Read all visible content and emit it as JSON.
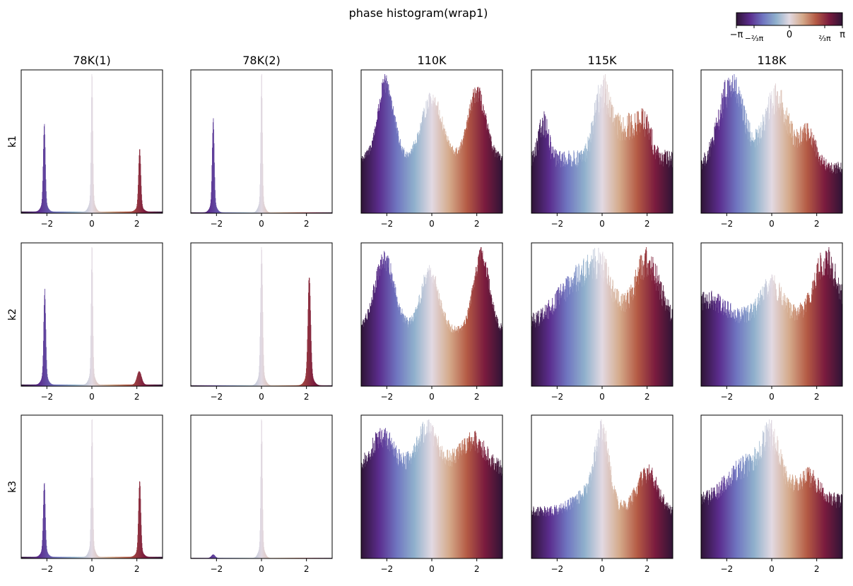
{
  "figure": {
    "title": "phase histogram(wrap1)",
    "colorbar": {
      "colormap": "twilight_shifted",
      "colormap_stops": [
        "#2f1436",
        "#5a2c8c",
        "#6f74c0",
        "#8fb0cc",
        "#e2d9e2",
        "#d4a98a",
        "#b45a44",
        "#7a1b3e",
        "#2f1436"
      ],
      "range": [
        -3.14159,
        3.14159
      ],
      "ticks": [
        {
          "value": -3.14159,
          "label": "−π"
        },
        {
          "value": -2.0944,
          "label": "−⅔π"
        },
        {
          "value": 0,
          "label": "0"
        },
        {
          "value": 2.0944,
          "label": "⅔π"
        },
        {
          "value": 3.14159,
          "label": "π"
        }
      ]
    },
    "column_titles": [
      "78K(1)",
      "78K(2)",
      "110K",
      "115K",
      "118K"
    ],
    "row_labels": [
      "k1",
      "k2",
      "k3"
    ]
  },
  "chart_data": {
    "type": "bar",
    "kind": "grid of phase histograms (3 rows × 5 columns)",
    "x_range": [
      -3.14159,
      3.14159
    ],
    "x_ticks": [
      {
        "value": -2,
        "label": "−2"
      },
      {
        "value": 0,
        "label": "0"
      },
      {
        "value": 2,
        "label": "2"
      }
    ],
    "y_ticks_shown": false,
    "bins": 400,
    "panels": [
      {
        "row": "k1",
        "col": "78K(1)",
        "baseline": 0.012,
        "noise": 0.02,
        "components": [
          {
            "center": -2.12,
            "amp": 0.59,
            "width": 0.045,
            "tail_amp": 0.12,
            "tail_width": 0.13
          },
          {
            "center": 0.0,
            "amp": 0.95,
            "width": 0.035,
            "tail_amp": 0.1,
            "tail_width": 0.12
          },
          {
            "center": 2.12,
            "amp": 0.43,
            "width": 0.05,
            "tail_amp": 0.1,
            "tail_width": 0.14
          }
        ]
      },
      {
        "row": "k1",
        "col": "78K(2)",
        "baseline": 0.006,
        "noise": 0.02,
        "components": [
          {
            "center": -2.15,
            "amp": 0.62,
            "width": 0.045,
            "tail_amp": 0.12,
            "tail_width": 0.13
          },
          {
            "center": 0.0,
            "amp": 0.95,
            "width": 0.035,
            "tail_amp": 0.1,
            "tail_width": 0.12
          }
        ]
      },
      {
        "row": "k1",
        "col": "110K",
        "baseline": 0.35,
        "noise": 0.08,
        "components": [
          {
            "center": -2.05,
            "amp": 0.48,
            "width": 0.35
          },
          {
            "center": 0.0,
            "amp": 0.38,
            "width": 0.45
          },
          {
            "center": 2.0,
            "amp": 0.42,
            "width": 0.38
          }
        ]
      },
      {
        "row": "k1",
        "col": "115K",
        "baseline": 0.38,
        "noise": 0.16,
        "components": [
          {
            "center": -2.6,
            "amp": 0.26,
            "width": 0.2
          },
          {
            "center": 0.0,
            "amp": 0.45,
            "width": 0.35
          },
          {
            "center": 1.1,
            "amp": 0.22,
            "width": 0.55
          },
          {
            "center": 1.9,
            "amp": 0.18,
            "width": 0.3
          }
        ]
      },
      {
        "row": "k1",
        "col": "118K",
        "baseline": 0.28,
        "noise": 0.14,
        "components": [
          {
            "center": -1.8,
            "amp": 0.5,
            "width": 0.55
          },
          {
            "center": 0.2,
            "amp": 0.42,
            "width": 0.55
          },
          {
            "center": 1.6,
            "amp": 0.2,
            "width": 0.35
          }
        ]
      },
      {
        "row": "k2",
        "col": "78K(1)",
        "baseline": 0.012,
        "noise": 0.02,
        "components": [
          {
            "center": -2.1,
            "amp": 0.63,
            "width": 0.045,
            "tail_amp": 0.12,
            "tail_width": 0.13
          },
          {
            "center": 0.0,
            "amp": 0.95,
            "width": 0.035,
            "tail_amp": 0.1,
            "tail_width": 0.12
          },
          {
            "center": 2.1,
            "amp": 0.1,
            "width": 0.1
          }
        ]
      },
      {
        "row": "k2",
        "col": "78K(2)",
        "baseline": 0.006,
        "noise": 0.02,
        "components": [
          {
            "center": 0.0,
            "amp": 0.93,
            "width": 0.045,
            "tail_amp": 0.1,
            "tail_width": 0.14
          },
          {
            "center": 2.12,
            "amp": 0.72,
            "width": 0.06,
            "tail_amp": 0.12,
            "tail_width": 0.16
          }
        ]
      },
      {
        "row": "k2",
        "col": "110K",
        "baseline": 0.38,
        "noise": 0.08,
        "components": [
          {
            "center": -2.1,
            "amp": 0.48,
            "width": 0.45
          },
          {
            "center": -0.1,
            "amp": 0.4,
            "width": 0.4
          },
          {
            "center": 2.2,
            "amp": 0.52,
            "width": 0.35
          }
        ]
      },
      {
        "row": "k2",
        "col": "115K",
        "baseline": 0.42,
        "noise": 0.13,
        "components": [
          {
            "center": -1.0,
            "amp": 0.28,
            "width": 0.9
          },
          {
            "center": 0.0,
            "amp": 0.22,
            "width": 0.5
          },
          {
            "center": 2.0,
            "amp": 0.4,
            "width": 0.55
          }
        ]
      },
      {
        "row": "k2",
        "col": "118K",
        "baseline": 0.5,
        "noise": 0.12,
        "components": [
          {
            "center": -2.8,
            "amp": 0.12,
            "width": 0.6
          },
          {
            "center": 0.0,
            "amp": 0.22,
            "width": 0.45
          },
          {
            "center": 2.4,
            "amp": 0.4,
            "width": 0.5
          }
        ]
      },
      {
        "row": "k3",
        "col": "78K(1)",
        "baseline": 0.012,
        "noise": 0.02,
        "components": [
          {
            "center": -2.12,
            "amp": 0.5,
            "width": 0.045,
            "tail_amp": 0.12,
            "tail_width": 0.13
          },
          {
            "center": 0.0,
            "amp": 0.95,
            "width": 0.035,
            "tail_amp": 0.1,
            "tail_width": 0.12
          },
          {
            "center": 2.12,
            "amp": 0.53,
            "width": 0.05,
            "tail_amp": 0.1,
            "tail_width": 0.14
          }
        ]
      },
      {
        "row": "k3",
        "col": "78K(2)",
        "baseline": 0.004,
        "noise": 0.02,
        "components": [
          {
            "center": -2.15,
            "amp": 0.025,
            "width": 0.08
          },
          {
            "center": 0.0,
            "amp": 0.94,
            "width": 0.035,
            "tail_amp": 0.1,
            "tail_width": 0.12
          }
        ]
      },
      {
        "row": "k3",
        "col": "110K",
        "baseline": 0.62,
        "noise": 0.09,
        "components": [
          {
            "center": -2.2,
            "amp": 0.25,
            "width": 0.5
          },
          {
            "center": -0.2,
            "amp": 0.3,
            "width": 0.5
          },
          {
            "center": 1.8,
            "amp": 0.22,
            "width": 0.6
          }
        ]
      },
      {
        "row": "k3",
        "col": "115K",
        "baseline": 0.36,
        "noise": 0.12,
        "components": [
          {
            "center": 0.0,
            "amp": 0.5,
            "width": 0.3
          },
          {
            "center": -0.5,
            "amp": 0.15,
            "width": 0.7
          },
          {
            "center": 2.0,
            "amp": 0.3,
            "width": 0.45
          }
        ]
      },
      {
        "row": "k3",
        "col": "118K",
        "baseline": 0.42,
        "noise": 0.13,
        "components": [
          {
            "center": -1.2,
            "amp": 0.25,
            "width": 0.8
          },
          {
            "center": 0.0,
            "amp": 0.4,
            "width": 0.45
          },
          {
            "center": 1.6,
            "amp": 0.18,
            "width": 0.5
          }
        ]
      }
    ]
  }
}
